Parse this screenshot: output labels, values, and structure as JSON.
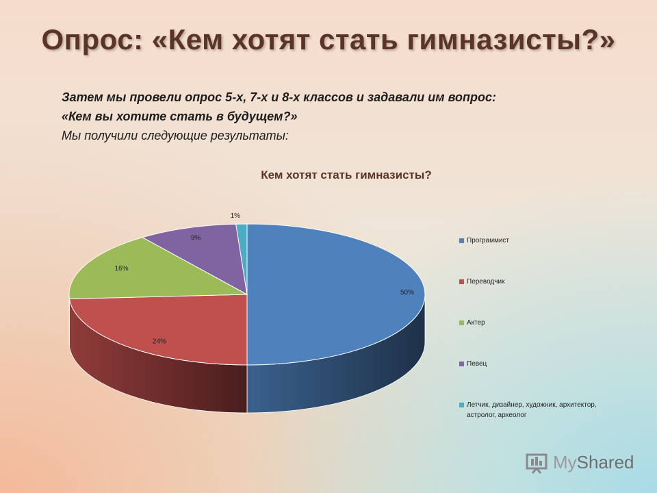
{
  "slide": {
    "title": "Опрос: «Кем хотят стать гимназисты?»",
    "intro_line1": "Затем мы провели опрос  5-х, 7-х и 8-х классов и задавали им вопрос:",
    "intro_line2": "«Кем вы хотите стать в будущем?»",
    "intro_line3": "Мы получили следующие результаты:"
  },
  "watermark": {
    "my": "My",
    "shared": "Shared"
  },
  "chart_data": {
    "type": "pie",
    "title": "Кем хотят стать гимназисты?",
    "style": "3d",
    "legend_position": "right",
    "slices": [
      {
        "label": "Программист",
        "value": 50,
        "display": "50%",
        "color": "#4f81bd"
      },
      {
        "label": "Переводчик",
        "value": 24,
        "display": "24%",
        "color": "#c0504d"
      },
      {
        "label": "Актер",
        "value": 16,
        "display": "16%",
        "color": "#9bbb59"
      },
      {
        "label": "Певец",
        "value": 9,
        "display": "9%",
        "color": "#8064a2"
      },
      {
        "label": "Летчик, дизайнер, художник, архитектор, астролог, археолог",
        "value": 1,
        "display": "1%",
        "color": "#4bacc6"
      }
    ]
  }
}
